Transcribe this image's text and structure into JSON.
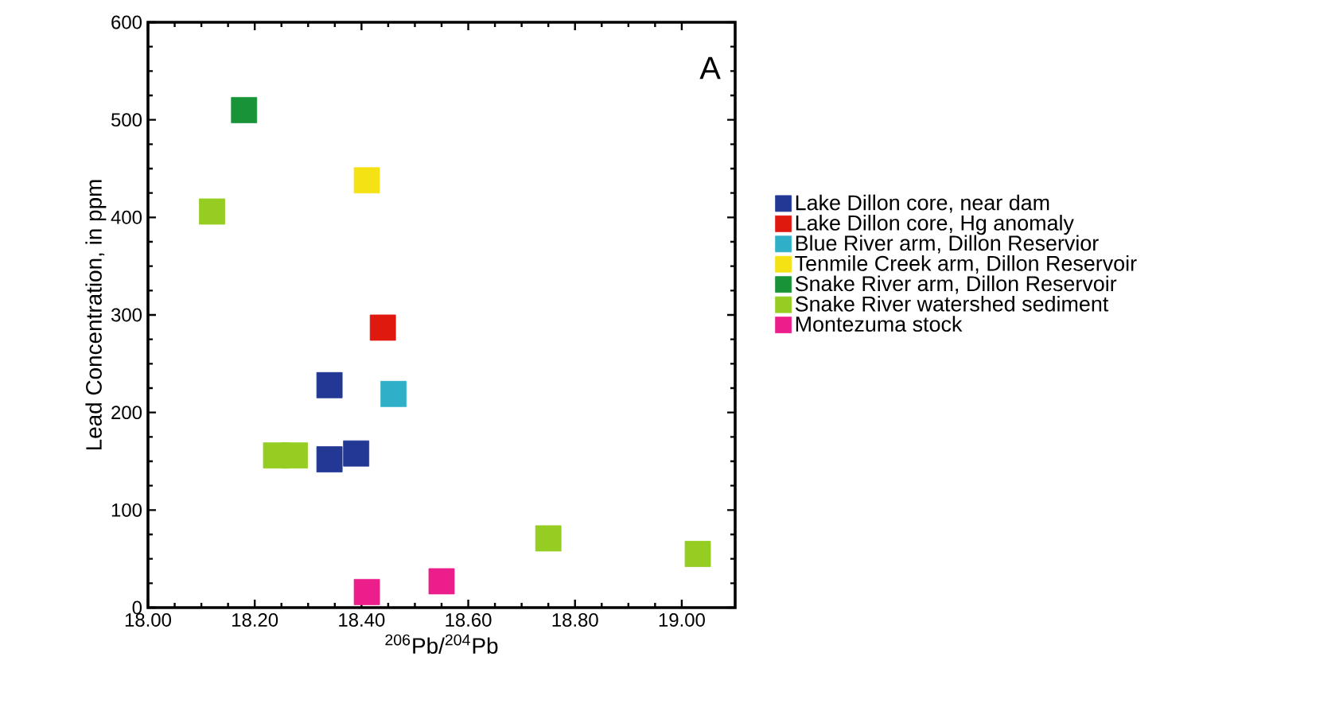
{
  "chart_data": {
    "type": "scatter",
    "xlabel": "$^{206}$Pb/$^{204}$Pb",
    "ylabel": "Lead Concentration, in ppm",
    "annotations": [
      "A"
    ],
    "xlim": [
      18.0,
      19.1
    ],
    "xticks": [
      {
        "value": 18.0,
        "label": "18.00"
      },
      {
        "value": 18.2,
        "label": "18.20"
      },
      {
        "value": 18.4,
        "label": "18.40"
      },
      {
        "value": 18.6,
        "label": "18.60"
      },
      {
        "value": 18.8,
        "label": "18.80"
      },
      {
        "value": 19.0,
        "label": "19.00"
      }
    ],
    "ylim": [
      0,
      600
    ],
    "yticks": [
      0,
      100,
      200,
      300,
      400,
      500,
      600
    ],
    "marker": "square",
    "legend": "right",
    "grid": false,
    "series": [
      {
        "name": "Lake Dillon core, near dam",
        "color": "#233895",
        "x": [
          18.34,
          18.34,
          18.39
        ],
        "values": [
          228,
          152,
          158
        ]
      },
      {
        "name": "Lake Dillon core, Hg anomaly",
        "color": "#e0190f",
        "x": [
          18.44
        ],
        "values": [
          287
        ]
      },
      {
        "name": "Blue River arm, Dillon Reservior",
        "color": "#30b0c8",
        "x": [
          18.46
        ],
        "values": [
          219
        ]
      },
      {
        "name": "Tenmile Creek arm, Dillon Reservoir",
        "color": "#f5e214",
        "x": [
          18.41
        ],
        "values": [
          438
        ]
      },
      {
        "name": "Snake River arm, Dillon Reservoir",
        "color": "#189338",
        "x": [
          18.18
        ],
        "values": [
          510
        ]
      },
      {
        "name": "Snake River watershed sediment",
        "color": "#95cd22",
        "x": [
          18.12,
          18.24,
          18.275,
          18.75,
          19.03
        ],
        "values": [
          406,
          156,
          156,
          71,
          55
        ]
      },
      {
        "name": "Montezuma stock",
        "color": "#ec1e8c",
        "x": [
          18.41,
          18.55
        ],
        "values": [
          16,
          27
        ]
      }
    ]
  }
}
